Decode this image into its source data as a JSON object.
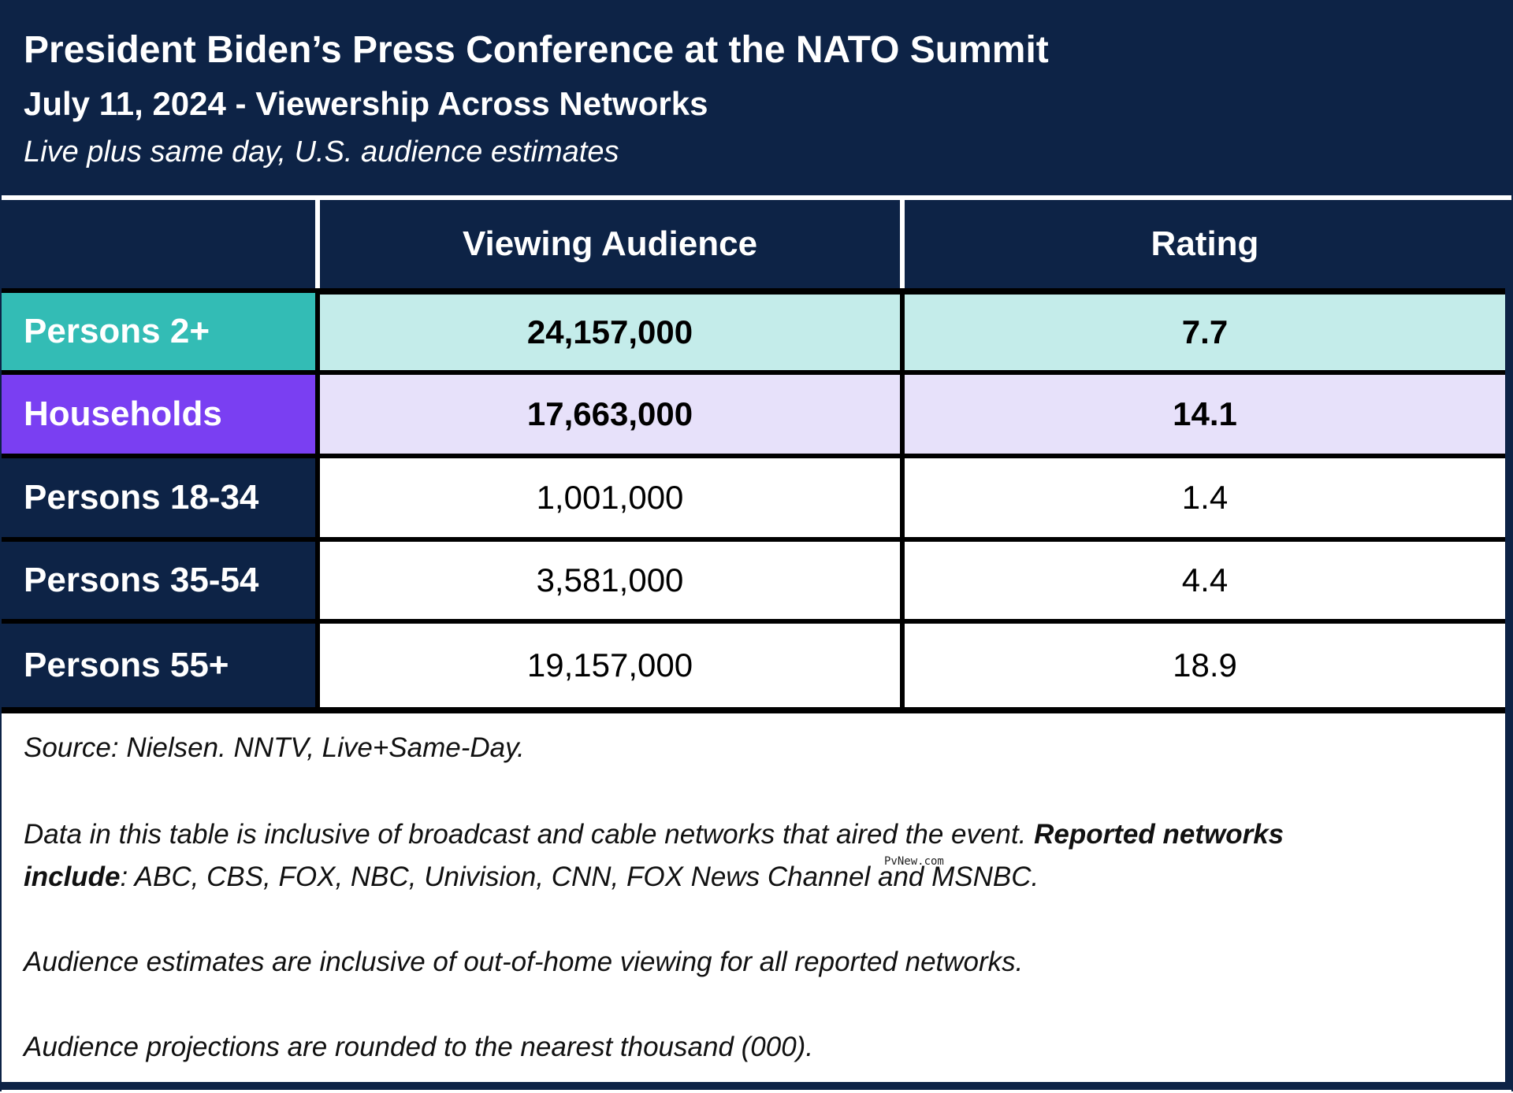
{
  "header": {
    "title": "President Biden’s Press Conference at the NATO Summit",
    "subtitle": "July 11, 2024 - Viewership Across Networks",
    "note": "Live plus same day, U.S. audience estimates"
  },
  "table": {
    "columns": [
      "",
      "Viewing Audience",
      "Rating"
    ],
    "rows": [
      {
        "label": "Persons 2+",
        "audience": "24,157,000",
        "rating": "7.7",
        "label_color": "#33bcb5",
        "cell_color": "#c4ecea"
      },
      {
        "label": "Households",
        "audience": "17,663,000",
        "rating": "14.1",
        "label_color": "#7a3ff2",
        "cell_color": "#e7e1fa"
      },
      {
        "label": "Persons 18-34",
        "audience": "1,001,000",
        "rating": "1.4"
      },
      {
        "label": "Persons 35-54",
        "audience": "3,581,000",
        "rating": "4.4"
      },
      {
        "label": "Persons 55+",
        "audience": "19,157,000",
        "rating": "18.9"
      }
    ]
  },
  "footer": {
    "source": "Source: Nielsen. NNTV, Live+Same-Day.",
    "data_note_1": "Data in this table is inclusive of broadcast and cable networks that aired the event.",
    "data_note_bold_1": "Reported networks",
    "data_note_bold_2": "include",
    "data_note_2": ": ABC, CBS, FOX, NBC, Univision, CNN, FOX News Channel and MSNBC.",
    "out_of_home": "Audience estimates are inclusive of out-of-home viewing for all reported networks.",
    "rounding": "Audience projections are rounded to the nearest thousand (000)."
  },
  "watermark": "PvNew.com",
  "colors": {
    "navy": "#0d2346",
    "teal": "#33bcb5",
    "purple": "#7a3ff2"
  }
}
